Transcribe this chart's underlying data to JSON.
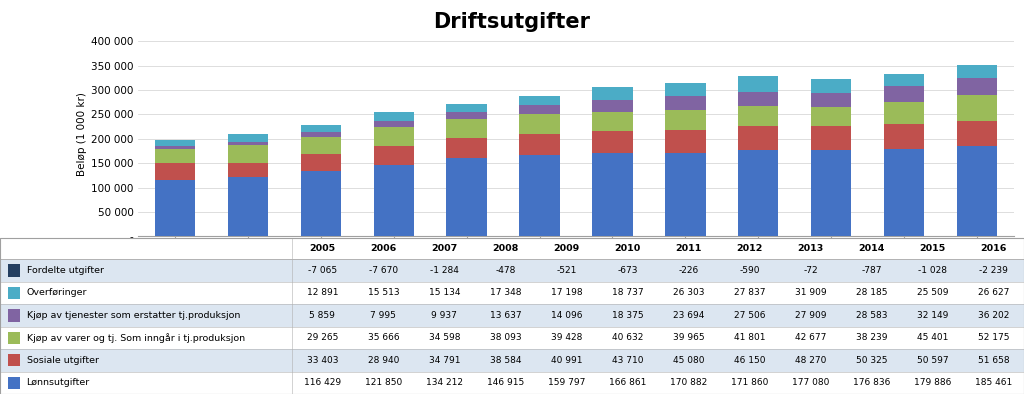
{
  "title": "Driftsutgifter",
  "ylabel": "Beløp (1 000 kr)",
  "years": [
    2005,
    2006,
    2007,
    2008,
    2009,
    2010,
    2011,
    2012,
    2013,
    2014,
    2015,
    2016
  ],
  "series": {
    "Lønnsutgifter": [
      116429,
      121850,
      134212,
      146915,
      159797,
      166861,
      170882,
      171860,
      177080,
      176836,
      179886,
      185461
    ],
    "Sosiale utgifter": [
      33403,
      28940,
      34791,
      38584,
      40991,
      43710,
      45080,
      46150,
      48270,
      50325,
      50597,
      51658
    ],
    "Kjøp av varer og tj. Som inngår i tj.produksjon": [
      29265,
      35666,
      34598,
      38093,
      39428,
      40632,
      39965,
      41801,
      42677,
      38239,
      45401,
      52175
    ],
    "Kjøp av tjenester som erstatter tj.produksjon": [
      5859,
      7995,
      9937,
      13637,
      14096,
      18375,
      23694,
      27506,
      27909,
      28583,
      32149,
      36202
    ],
    "Overføringer": [
      12891,
      15513,
      15134,
      17348,
      17198,
      18737,
      26303,
      27837,
      31909,
      28185,
      25509,
      26627
    ],
    "Fordelte utgifter": [
      -7065,
      -7670,
      -1284,
      -478,
      -521,
      -673,
      -226,
      -590,
      -72,
      -787,
      -1028,
      -2239
    ]
  },
  "series_order": [
    "Lønnsutgifter",
    "Sosiale utgifter",
    "Kjøp av varer og tj. Som inngår i tj.produksjon",
    "Kjøp av tjenester som erstatter tj.produksjon",
    "Overføringer",
    "Fordelte utgifter"
  ],
  "legend_order": [
    "Fordelte utgifter",
    "Overføringer",
    "Kjøp av tjenester som erstatter tj.produksjon",
    "Kjøp av varer og tj. Som inngår i tj.produksjon",
    "Sosiale utgifter",
    "Lønnsutgifter"
  ],
  "colors": {
    "Lønnsutgifter": "#4472C4",
    "Sosiale utgifter": "#C0504D",
    "Kjøp av varer og tj. Som inngår i tj.produksjon": "#9BBB59",
    "Kjøp av tjenester som erstatter tj.produksjon": "#8064A2",
    "Overføringer": "#4BACC6",
    "Fordelte utgifter": "#243F60"
  },
  "ylim": [
    0,
    420000
  ],
  "yticks": [
    0,
    50000,
    100000,
    150000,
    200000,
    250000,
    300000,
    350000,
    400000
  ],
  "ytick_labels": [
    "-",
    "50 000",
    "100 000",
    "150 000",
    "200 000",
    "250 000",
    "300 000",
    "350 000",
    "400 000"
  ],
  "background_color": "#FFFFFF",
  "grid_color": "#D0D0D0",
  "title_fontsize": 15,
  "axis_fontsize": 7.5,
  "table_fontsize": 6.8
}
